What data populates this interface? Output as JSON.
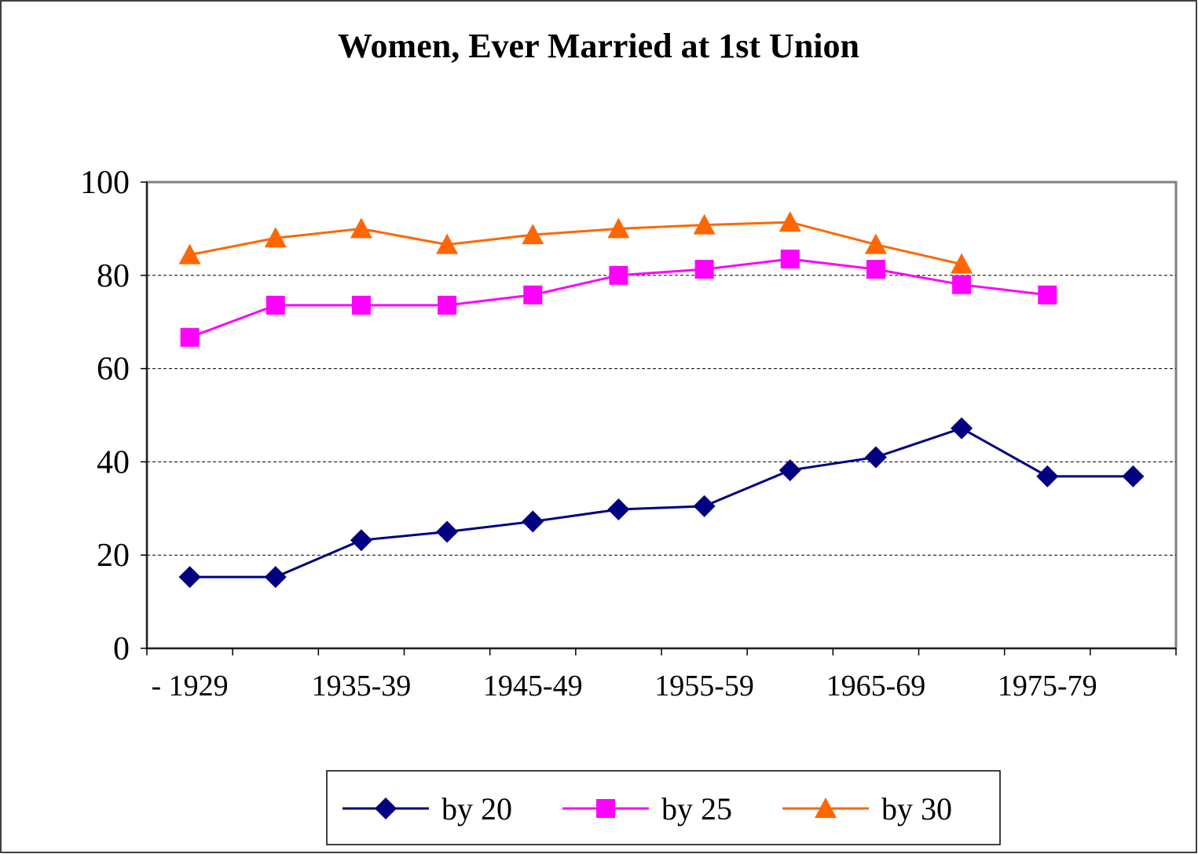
{
  "chart_data": {
    "type": "line",
    "title": "Women, Ever Married at 1st Union",
    "categories": [
      "- 1929",
      null,
      "1935-39",
      null,
      "1945-49",
      null,
      "1955-59",
      null,
      "1965-69",
      null,
      "1975-79",
      null
    ],
    "series": [
      {
        "name": "by 20",
        "color": "#000080",
        "marker": "diamond",
        "values": [
          15.3,
          15.3,
          23.2,
          25,
          27.2,
          29.8,
          30.5,
          38.2,
          41,
          47.2,
          36.9,
          36.9
        ]
      },
      {
        "name": "by 25",
        "color": "#ff00ff",
        "marker": "square",
        "values": [
          66.7,
          73.6,
          73.6,
          73.6,
          75.8,
          80,
          81.3,
          83.5,
          81.3,
          78,
          75.8,
          null
        ]
      },
      {
        "name": "by 30",
        "color": "#ff6600",
        "marker": "triangle",
        "values": [
          84.4,
          88,
          90,
          86.6,
          88.7,
          90,
          90.8,
          91.4,
          86.6,
          82.4,
          null,
          null
        ]
      }
    ],
    "ylim": [
      0,
      100
    ],
    "yticks": [
      0,
      20,
      40,
      60,
      80,
      100
    ],
    "grid": true,
    "legend": "bottom"
  }
}
